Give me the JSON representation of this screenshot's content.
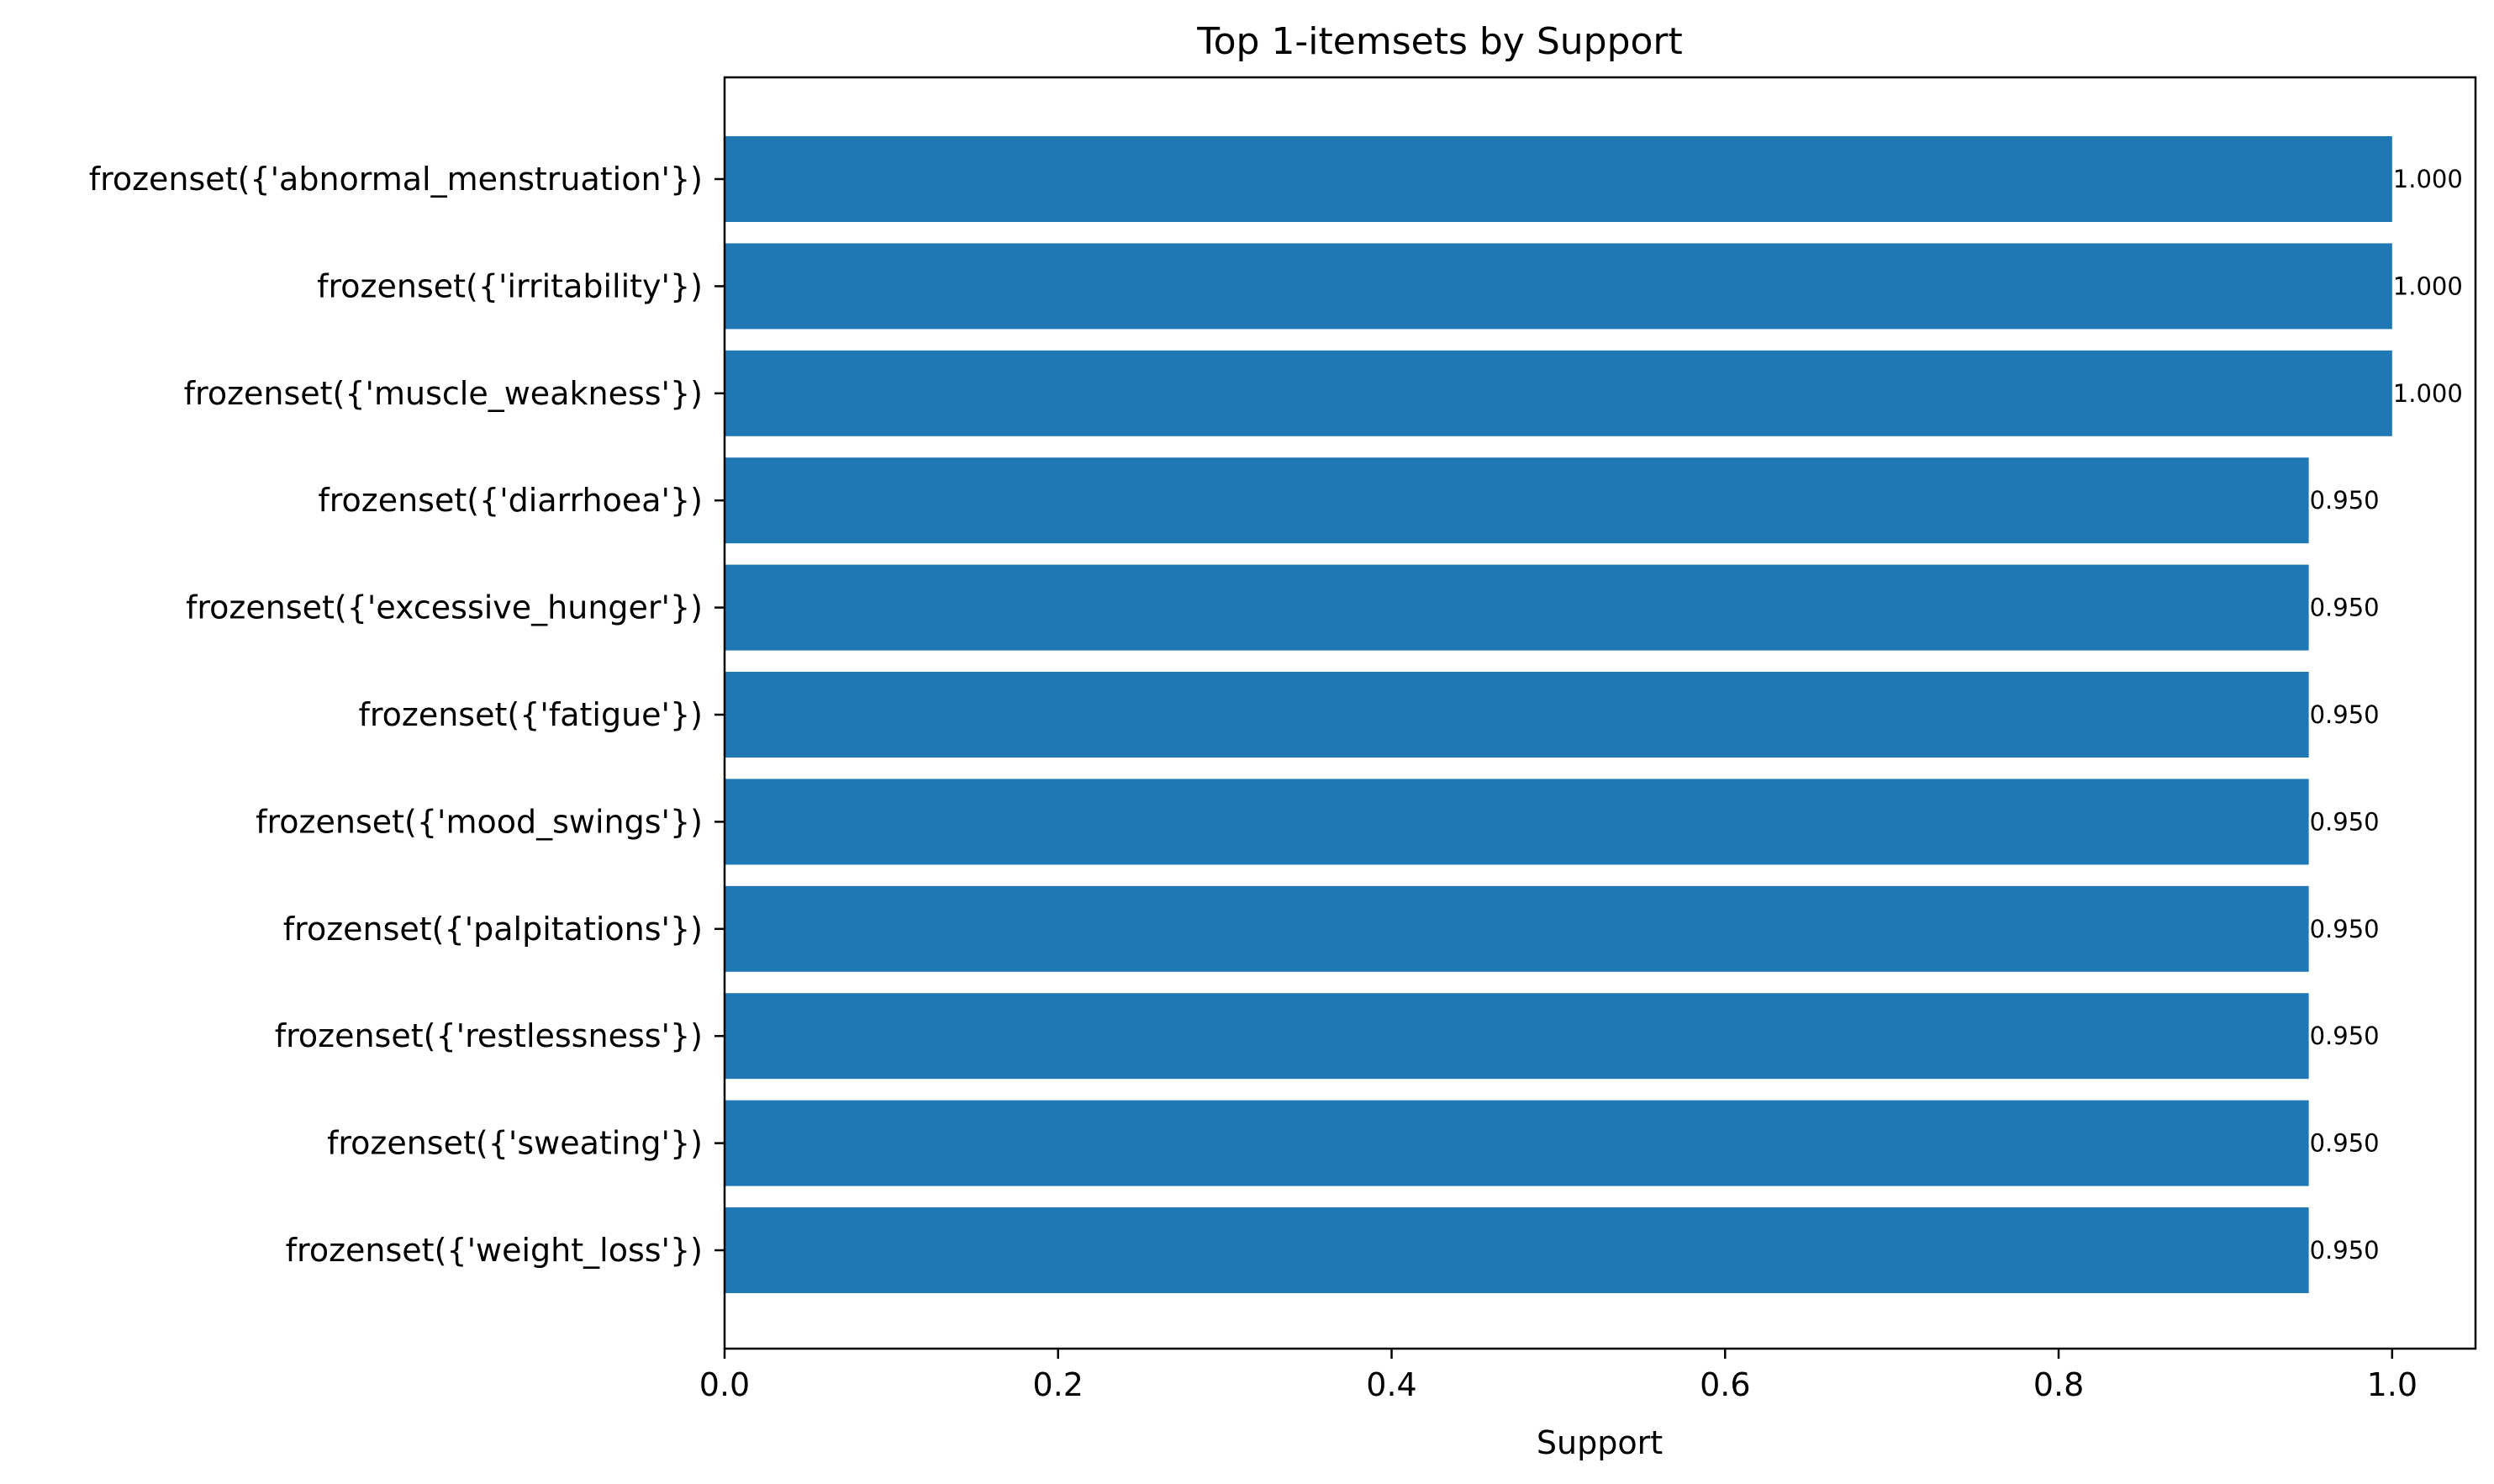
{
  "chart_data": {
    "type": "bar",
    "orientation": "horizontal",
    "title": "Top 1-itemsets by Support",
    "xlabel": "Support",
    "ylabel": "",
    "xlim": [
      0,
      1.05
    ],
    "x_ticks": [
      "0.0",
      "0.2",
      "0.4",
      "0.6",
      "0.8",
      "1.0"
    ],
    "x_tick_values": [
      0,
      0.2,
      0.4,
      0.6,
      0.8,
      1.0
    ],
    "grid": false,
    "legend": "none",
    "bar_color": "#1f77b4",
    "categories": [
      "frozenset({'abnormal_menstruation'})",
      "frozenset({'irritability'})",
      "frozenset({'muscle_weakness'})",
      "frozenset({'diarrhoea'})",
      "frozenset({'excessive_hunger'})",
      "frozenset({'fatigue'})",
      "frozenset({'mood_swings'})",
      "frozenset({'palpitations'})",
      "frozenset({'restlessness'})",
      "frozenset({'sweating'})",
      "frozenset({'weight_loss'})"
    ],
    "values": [
      1.0,
      1.0,
      1.0,
      0.95,
      0.95,
      0.95,
      0.95,
      0.95,
      0.95,
      0.95,
      0.95
    ],
    "value_labels": [
      "1.000",
      "1.000",
      "1.000",
      "0.950",
      "0.950",
      "0.950",
      "0.950",
      "0.950",
      "0.950",
      "0.950",
      "0.950"
    ]
  }
}
